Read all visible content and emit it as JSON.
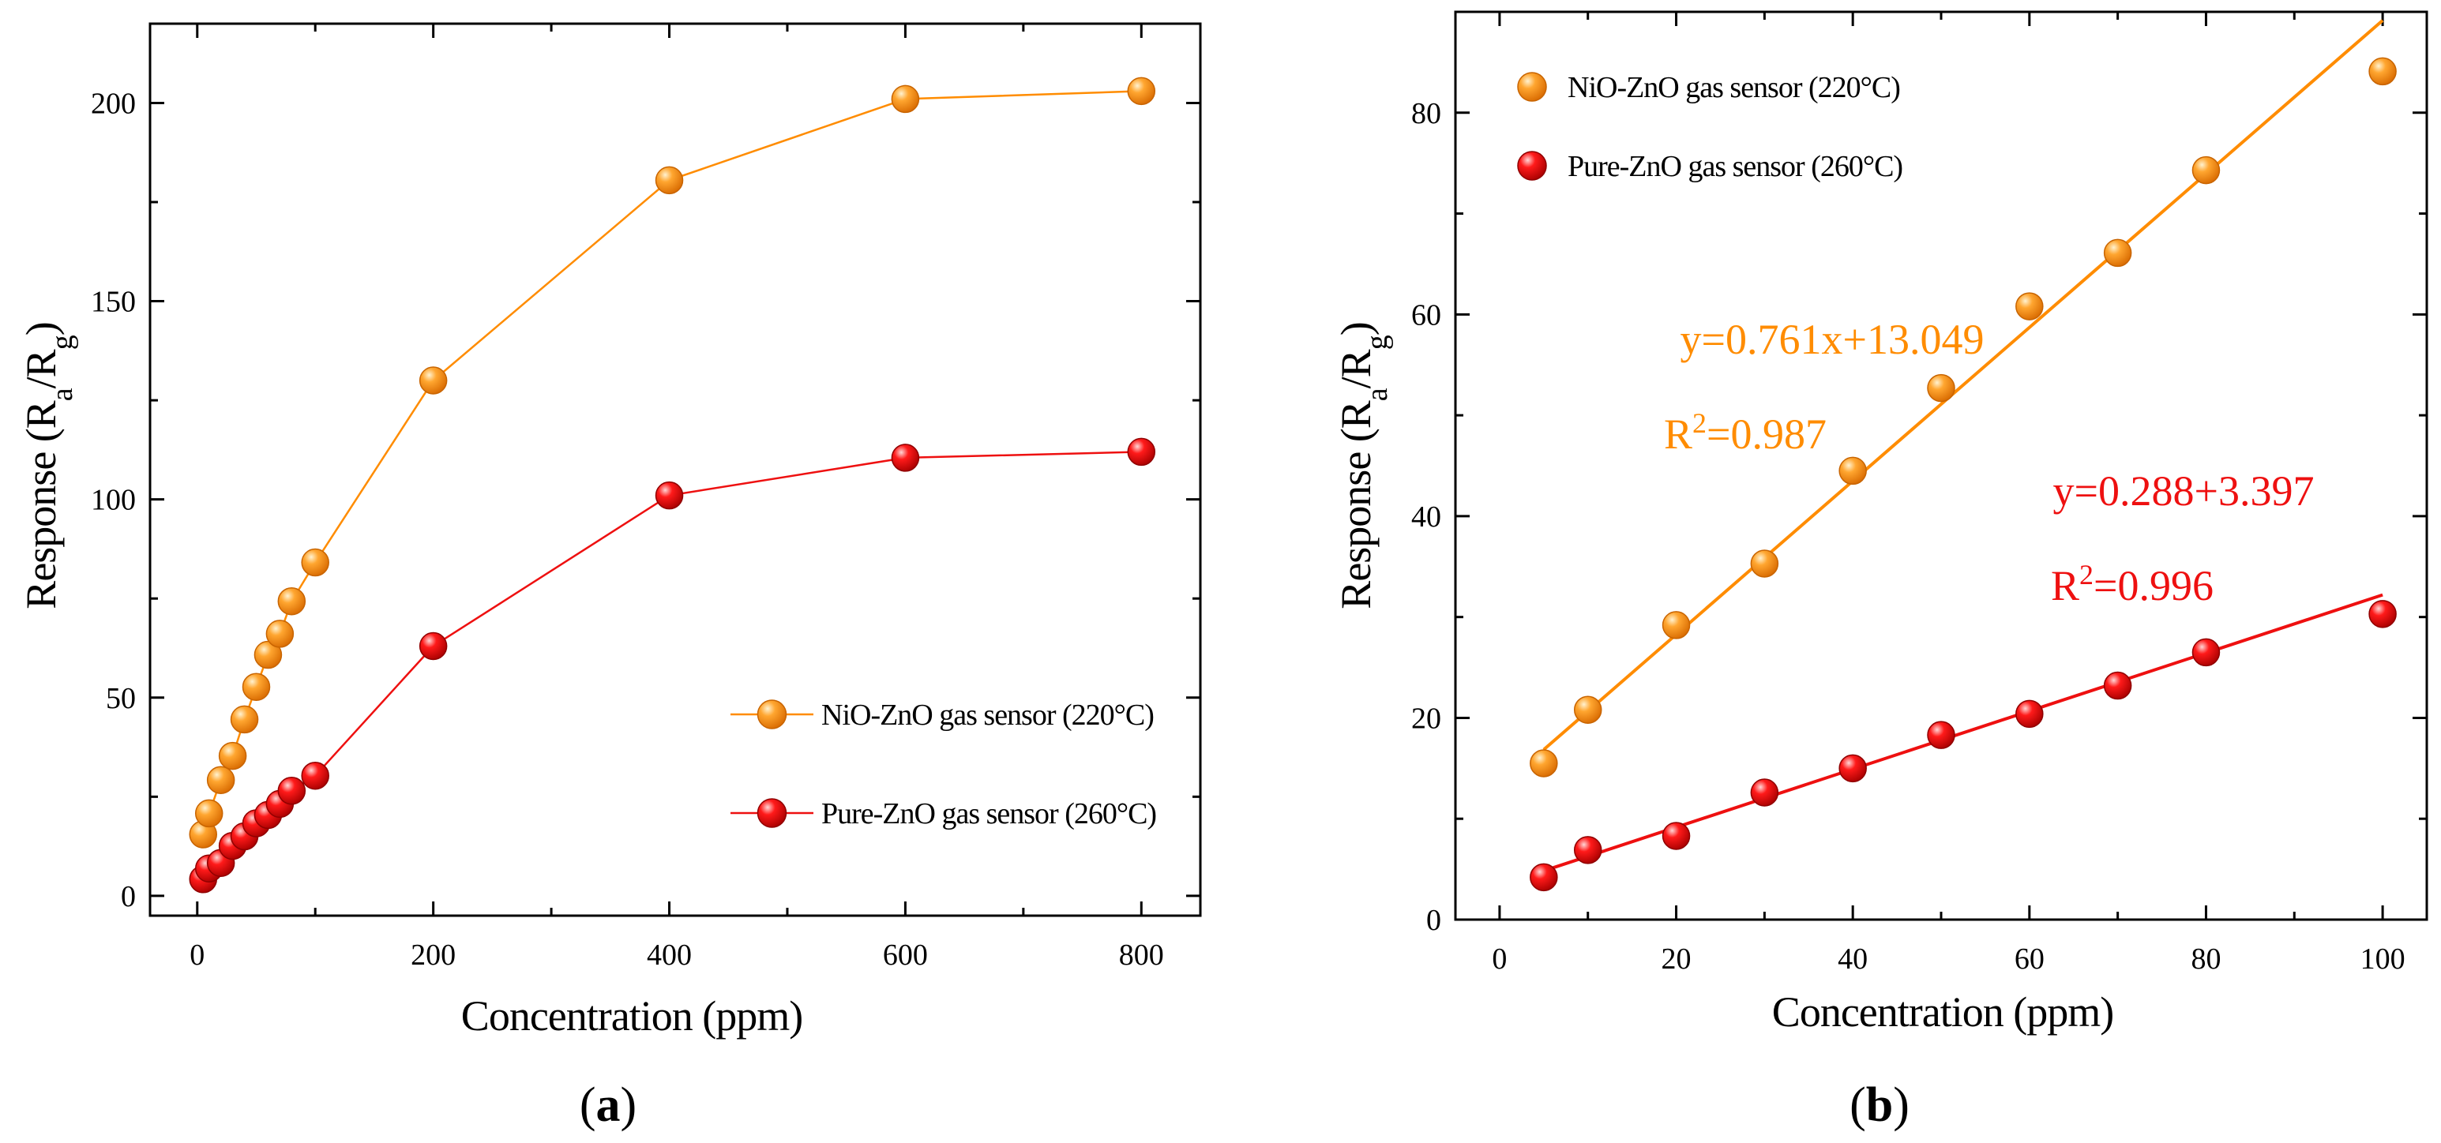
{
  "chart_data": [
    {
      "type": "line",
      "panel_label": "a",
      "xlabel": "Concentration (ppm)",
      "ylabel": "Response (Ra/Rg)",
      "xlim": [
        -40,
        850
      ],
      "ylim": [
        -5,
        220
      ],
      "xticks": [
        0,
        200,
        400,
        600,
        800
      ],
      "yticks": [
        0,
        50,
        100,
        150,
        200
      ],
      "legend_position": "bottom-right",
      "series": [
        {
          "name": "NiO-ZnO gas sensor (220°C)",
          "color": "#ff8c00",
          "x": [
            5,
            10,
            20,
            30,
            40,
            50,
            60,
            70,
            80,
            100,
            200,
            400,
            600,
            800
          ],
          "y": [
            15.5,
            20.8,
            29.2,
            35.3,
            44.5,
            52.7,
            60.8,
            66.1,
            74.3,
            84.1,
            130,
            180.5,
            201,
            203
          ]
        },
        {
          "name": "Pure-ZnO gas sensor (260°C)",
          "color": "#ee1010",
          "x": [
            5,
            10,
            20,
            30,
            40,
            50,
            60,
            70,
            80,
            100,
            200,
            400,
            600,
            800
          ],
          "y": [
            4.2,
            6.9,
            8.3,
            12.6,
            15,
            18.3,
            20.4,
            23.2,
            26.5,
            30.3,
            63,
            101,
            110.5,
            112
          ]
        }
      ]
    },
    {
      "type": "scatter",
      "panel_label": "b",
      "xlabel": "Concentration (ppm)",
      "ylabel": "Response (Ra/Rg)",
      "xlim": [
        -5,
        105
      ],
      "ylim": [
        0,
        90
      ],
      "xticks": [
        0,
        20,
        40,
        60,
        80,
        100
      ],
      "yticks": [
        0,
        20,
        40,
        60,
        80
      ],
      "legend_position": "top-left",
      "series": [
        {
          "name": "NiO-ZnO gas sensor (220°C)",
          "color": "#ff8c00",
          "x": [
            5,
            10,
            20,
            30,
            40,
            50,
            60,
            70,
            80,
            100
          ],
          "y": [
            15.5,
            20.8,
            29.2,
            35.3,
            44.5,
            52.7,
            60.8,
            66.1,
            74.3,
            84.1
          ],
          "fit": {
            "slope": 0.761,
            "intercept": 13.049,
            "x_range": [
              5,
              100
            ]
          },
          "equation": "y=0.761x+13.049",
          "r2": "=0.987"
        },
        {
          "name": "Pure-ZnO gas sensor (260°C)",
          "color": "#ee1010",
          "x": [
            5,
            10,
            20,
            30,
            40,
            50,
            60,
            70,
            80,
            100
          ],
          "y": [
            4.2,
            6.9,
            8.3,
            12.6,
            15,
            18.3,
            20.4,
            23.2,
            26.5,
            30.3
          ],
          "fit": {
            "slope": 0.288,
            "intercept": 3.397,
            "x_range": [
              5,
              100
            ]
          },
          "equation": "y=0.288+3.397",
          "r2": "=0.996"
        }
      ]
    }
  ]
}
